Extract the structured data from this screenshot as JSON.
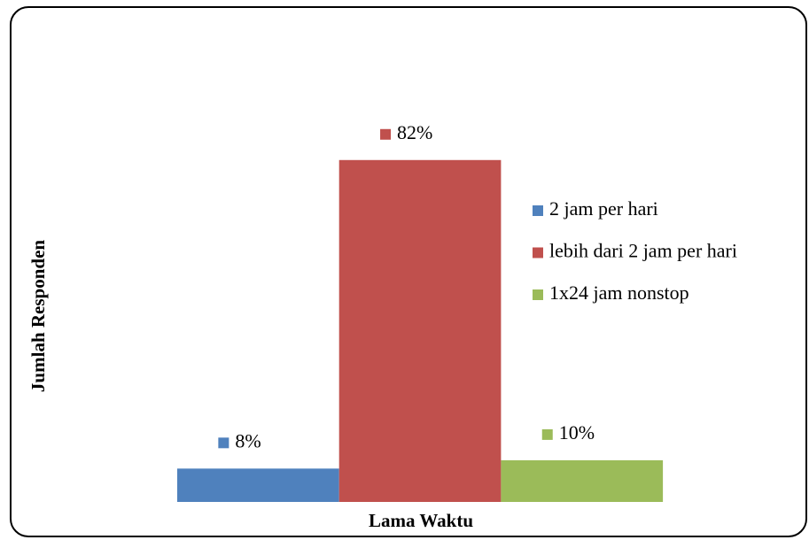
{
  "chart_data": {
    "type": "bar",
    "xlabel": "Lama Waktu",
    "ylabel": "Jumlah Responden",
    "series": [
      {
        "name": "2 jam per hari",
        "color": "#4f81bd",
        "values": [
          8
        ],
        "value_labels": [
          "8%"
        ]
      },
      {
        "name": "lebih dari 2 jam per hari",
        "color": "#c0504d",
        "values": [
          82
        ],
        "value_labels": [
          "82%"
        ]
      },
      {
        "name": "1x24 jam nonstop",
        "color": "#9bbb59",
        "values": [
          10
        ],
        "value_labels": [
          "10%"
        ]
      }
    ]
  }
}
